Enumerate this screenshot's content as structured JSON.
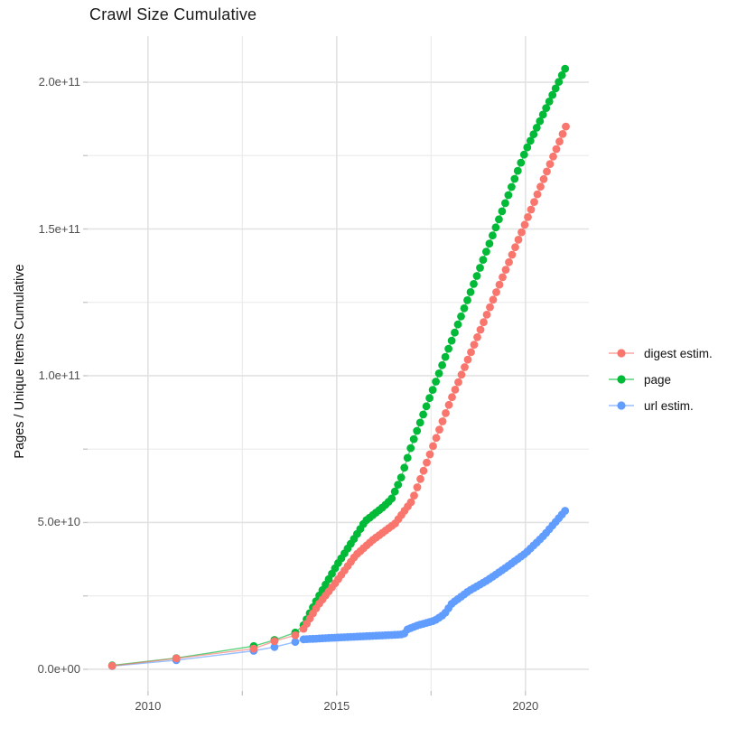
{
  "title": "Crawl Size Cumulative",
  "chart_data": {
    "type": "scatter",
    "title": "Crawl Size Cumulative",
    "xlabel": "",
    "ylabel": "Pages / Unique Items Cumulative",
    "units_note": "series values in billions of items (1e9); y tick labels shown in scientific notation",
    "xlim": [
      2008.4,
      2021.68
    ],
    "ylim_e9": [
      -7.4,
      215.7
    ],
    "x_ticks": [
      {
        "value": 2010,
        "label": "2010"
      },
      {
        "value": 2015,
        "label": "2015"
      },
      {
        "value": 2020,
        "label": "2020"
      }
    ],
    "x_minor_ticks": [
      2012.5,
      2017.5
    ],
    "y_ticks": [
      {
        "value_e9": 0,
        "label": "0.0e+00"
      },
      {
        "value_e9": 50,
        "label": "5.0e+10"
      },
      {
        "value_e9": 100,
        "label": "1.0e+11"
      },
      {
        "value_e9": 150,
        "label": "1.5e+11"
      },
      {
        "value_e9": 200,
        "label": "2.0e+11"
      }
    ],
    "y_minor_ticks_e9": [
      25,
      75,
      125,
      175
    ],
    "grid": true,
    "legend_position": "right",
    "dot_interval_years": 0.0833,
    "series": [
      {
        "name": "digest estim.",
        "color": "#F8766D",
        "points_sparse": [
          [
            2009.05,
            1.2
          ],
          [
            2010.75,
            3.7
          ],
          [
            2012.8,
            7.0
          ],
          [
            2013.35,
            9.6
          ],
          [
            2013.9,
            11.6
          ]
        ],
        "trend": [
          [
            2014.12,
            13.8
          ],
          [
            2014.5,
            21.7
          ],
          [
            2015.0,
            30.0
          ],
          [
            2015.5,
            38.8
          ],
          [
            2015.95,
            44.0
          ],
          [
            2016.3,
            47.3
          ],
          [
            2016.55,
            49.7
          ],
          [
            2016.77,
            53.5
          ],
          [
            2017.0,
            57.5
          ],
          [
            2018.0,
            91.0
          ],
          [
            2019.0,
            121.5
          ],
          [
            2020.0,
            152.0
          ],
          [
            2020.5,
            167.5
          ],
          [
            2021.07,
            184.9
          ]
        ],
        "dots_from": 2014.12,
        "dots_to": 2021.07
      },
      {
        "name": "page",
        "color": "#00BA38",
        "points_sparse": [
          [
            2009.05,
            1.3
          ],
          [
            2010.75,
            3.8
          ],
          [
            2012.8,
            7.9
          ],
          [
            2013.35,
            10.0
          ],
          [
            2013.9,
            12.5
          ]
        ],
        "trend": [
          [
            2014.12,
            15.0
          ],
          [
            2014.5,
            24.3
          ],
          [
            2015.0,
            35.4
          ],
          [
            2015.45,
            44.3
          ],
          [
            2015.75,
            50.4
          ],
          [
            2016.25,
            55.5
          ],
          [
            2016.45,
            58.0
          ],
          [
            2016.7,
            65.0
          ],
          [
            2017.0,
            77.0
          ],
          [
            2018.0,
            110.5
          ],
          [
            2019.0,
            143.5
          ],
          [
            2020.0,
            176.5
          ],
          [
            2021.05,
            204.6
          ]
        ],
        "dots_from": 2014.12,
        "dots_to": 2021.05
      },
      {
        "name": "url estim.",
        "color": "#619CFF",
        "points_sparse": [
          [
            2009.05,
            1.1
          ],
          [
            2010.75,
            3.1
          ],
          [
            2012.8,
            6.3
          ],
          [
            2013.35,
            7.6
          ],
          [
            2013.9,
            9.3
          ]
        ],
        "trend": [
          [
            2014.12,
            10.2
          ],
          [
            2015.0,
            10.8
          ],
          [
            2016.0,
            11.4
          ],
          [
            2016.78,
            11.9
          ],
          [
            2016.84,
            13.4
          ],
          [
            2017.15,
            15.0
          ],
          [
            2017.6,
            16.6
          ],
          [
            2017.85,
            18.8
          ],
          [
            2018.05,
            22.4
          ],
          [
            2018.5,
            26.7
          ],
          [
            2019.0,
            30.4
          ],
          [
            2019.5,
            34.8
          ],
          [
            2020.0,
            39.5
          ],
          [
            2020.5,
            45.7
          ],
          [
            2021.05,
            54.0
          ]
        ],
        "dots_from": 2014.12,
        "dots_to": 2021.05
      }
    ],
    "colors": {
      "background": "#ffffff",
      "grid_major": "#e2e2e2",
      "grid_minor": "#ededed",
      "tick_mark": "#c6c6c6",
      "tick_label": "#4d4d4d",
      "text": "#1a1a1a",
      "series_digest": "#F8766D",
      "series_page": "#00BA38",
      "series_url": "#619CFF"
    }
  }
}
